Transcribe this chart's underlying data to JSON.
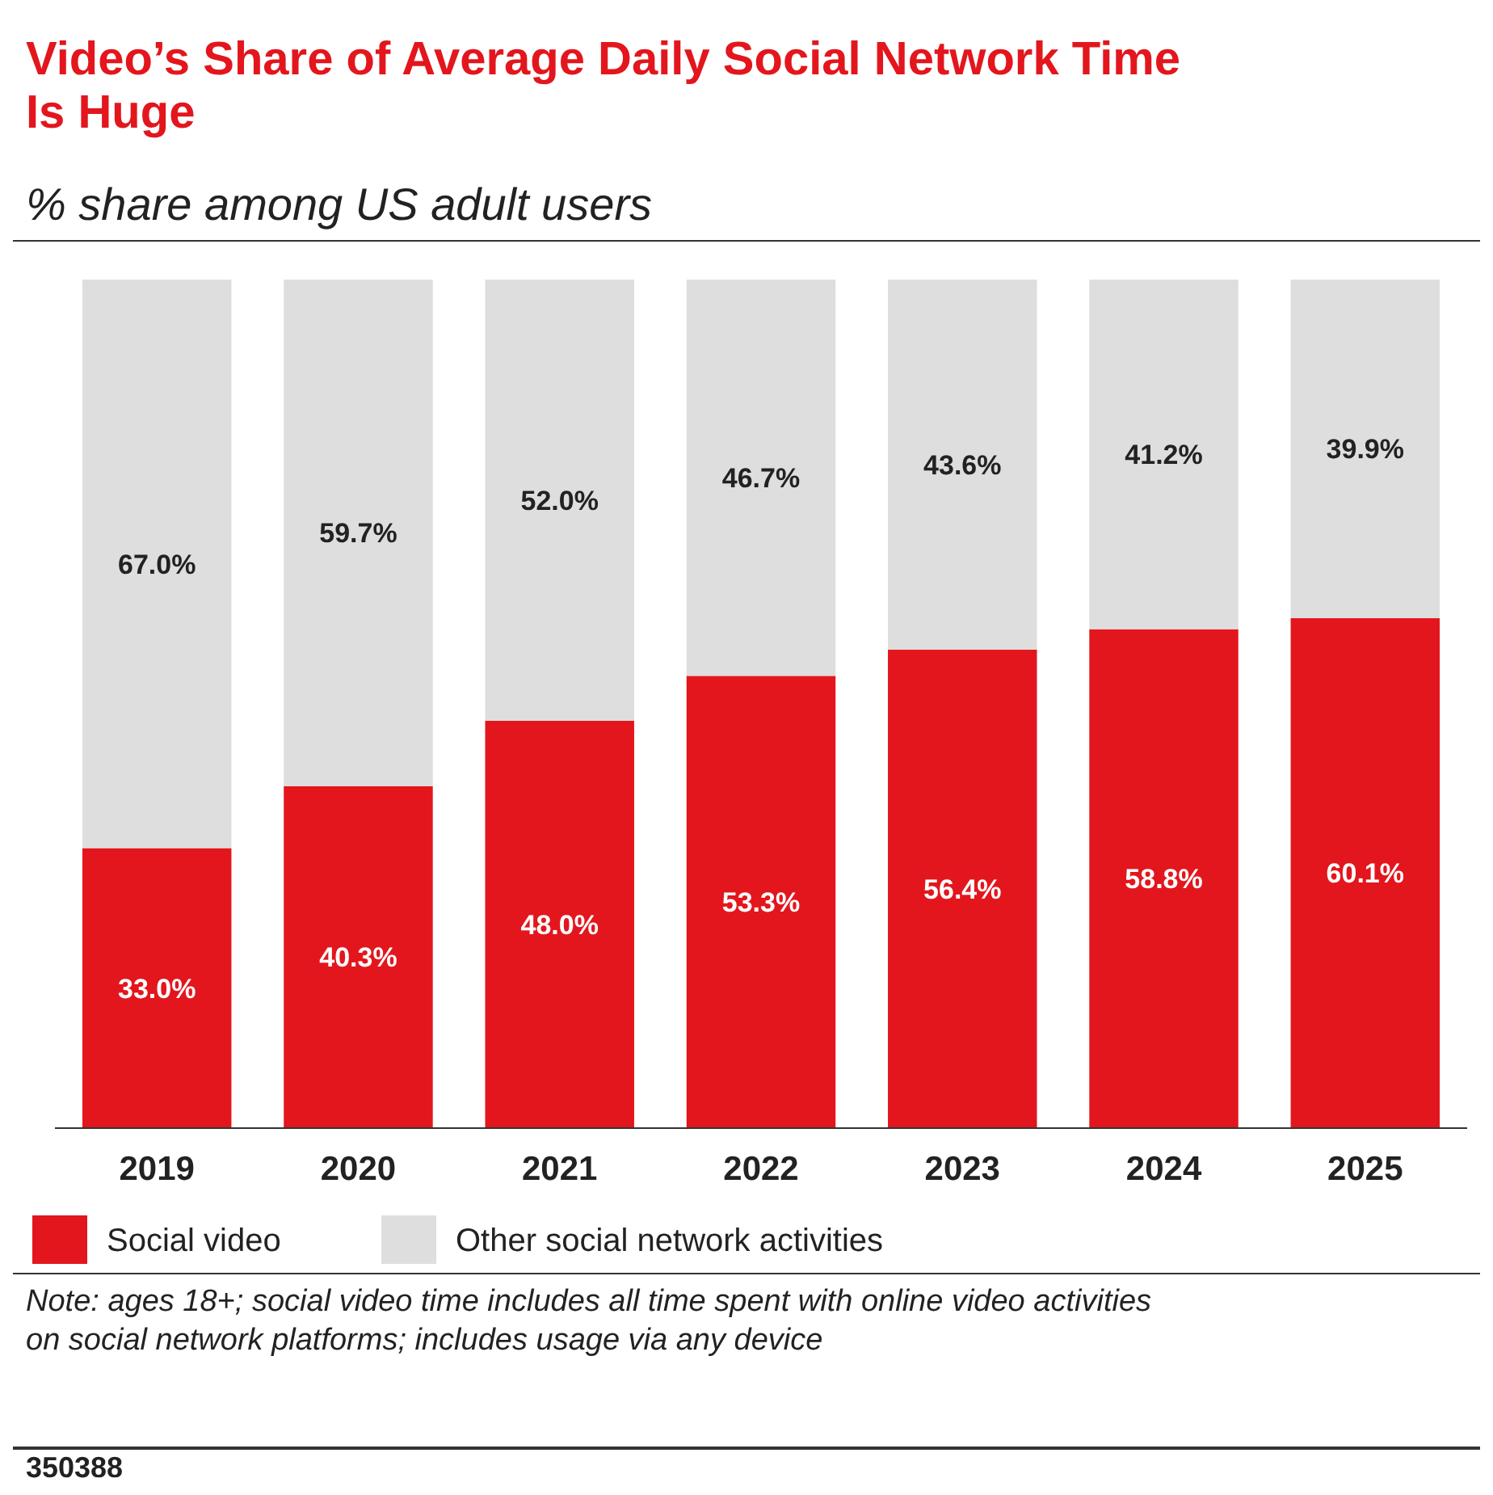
{
  "chart_data": {
    "type": "bar",
    "title": "Video’s Share of Average Daily Social Network Time Is Huge",
    "subtitle": "% share among US adult users",
    "categories": [
      "2019",
      "2020",
      "2021",
      "2022",
      "2023",
      "2024",
      "2025"
    ],
    "stacked": true,
    "legend": "bottom left",
    "series": [
      {
        "name": "Social video",
        "color": "#e3161d",
        "values": [
          33.0,
          40.3,
          48.0,
          53.3,
          56.4,
          58.8,
          60.1
        ],
        "value_labels": [
          "33.0%",
          "40.3%",
          "48.0%",
          "53.3%",
          "56.4%",
          "58.8%",
          "60.1%"
        ]
      },
      {
        "name": "Other social network activities",
        "color": "#dedede",
        "values": [
          67.0,
          59.7,
          52.0,
          46.7,
          43.6,
          41.2,
          39.9
        ],
        "value_labels": [
          "67.0%",
          "59.7%",
          "52.0%",
          "46.7%",
          "43.6%",
          "41.2%",
          "39.9%"
        ]
      }
    ],
    "annotations": [
      "Note: ages 18+; social video time includes all time spent with online video activities on social network platforms; includes usage via any device",
      "350388"
    ]
  }
}
